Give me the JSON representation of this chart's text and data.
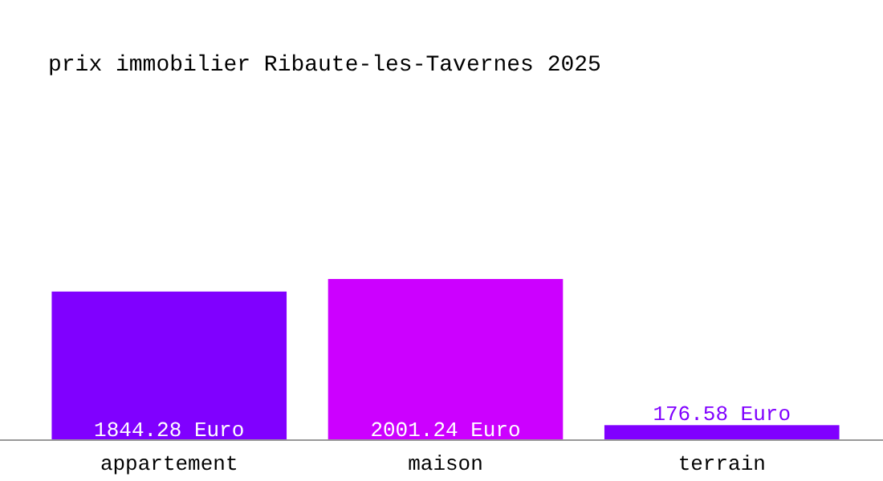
{
  "chart_data": {
    "type": "bar",
    "title": "prix immobilier Ribaute-les-Tavernes 2025",
    "categories": [
      "appartement",
      "maison",
      "terrain"
    ],
    "values": [
      1844.28,
      2001.24,
      176.58
    ],
    "value_labels": [
      "1844.28 Euro",
      "2001.24 Euro",
      "176.58 Euro"
    ],
    "colors": [
      "#8000ff",
      "#cc00ff",
      "#8000ff"
    ]
  }
}
